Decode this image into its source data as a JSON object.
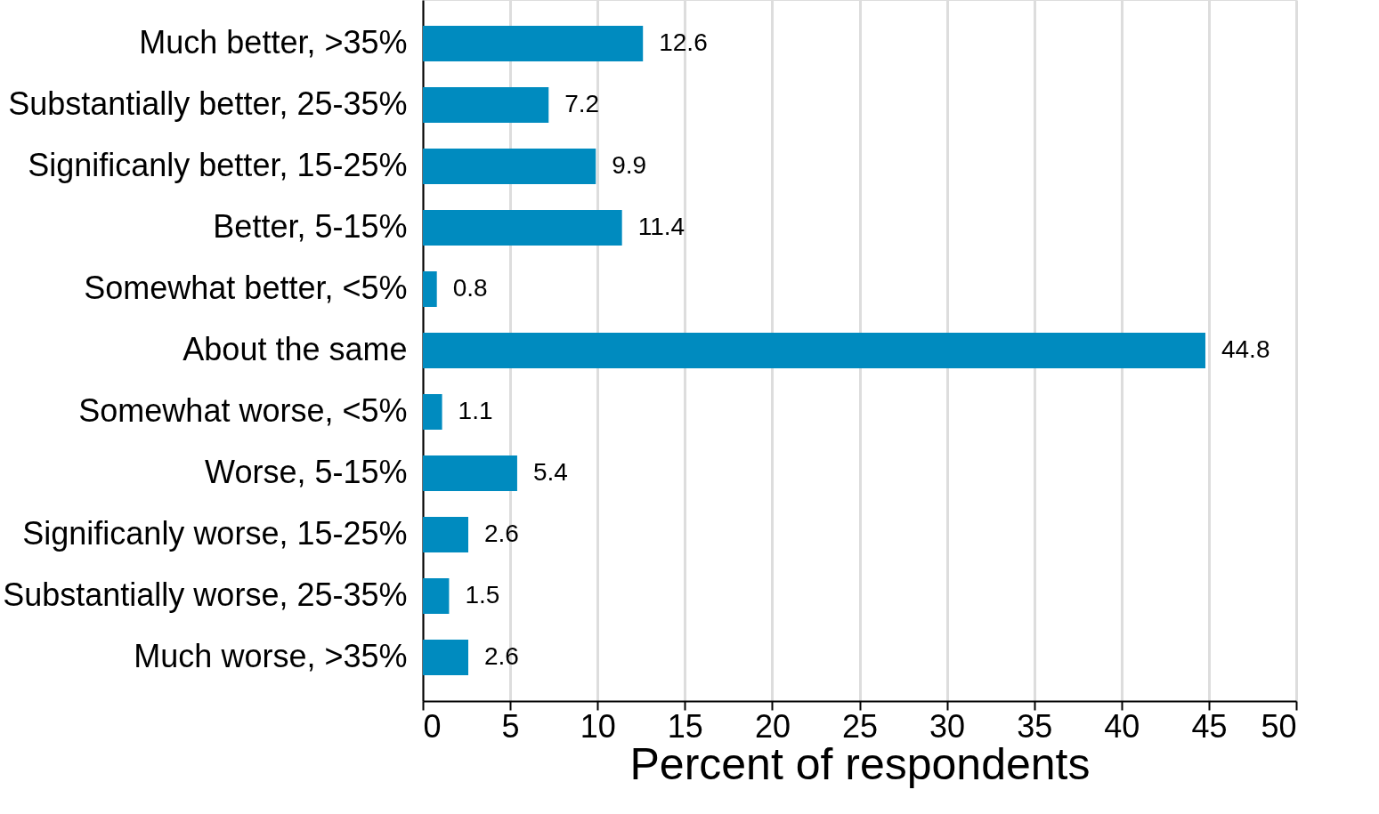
{
  "chart_data": {
    "type": "bar",
    "orientation": "horizontal",
    "xlabel": "Percent of respondents",
    "categories": [
      "Much better, >35%",
      "Substantially better, 25-35%",
      "Significanly better, 15-25%",
      "Better, 5-15%",
      "Somewhat better, <5%",
      "About the same",
      "Somewhat worse, <5%",
      "Worse, 5-15%",
      "Significanly worse, 15-25%",
      "Substantially worse, 25-35%",
      "Much worse, >35%"
    ],
    "values": [
      12.6,
      7.2,
      9.9,
      11.4,
      0.8,
      44.8,
      1.1,
      5.4,
      2.6,
      1.5,
      2.6
    ],
    "color": "#008bbf",
    "xlim": [
      0,
      50
    ],
    "xticks": [
      0,
      5,
      10,
      15,
      20,
      25,
      30,
      35,
      40,
      45,
      50
    ],
    "grid": "x",
    "data_labels": true
  }
}
